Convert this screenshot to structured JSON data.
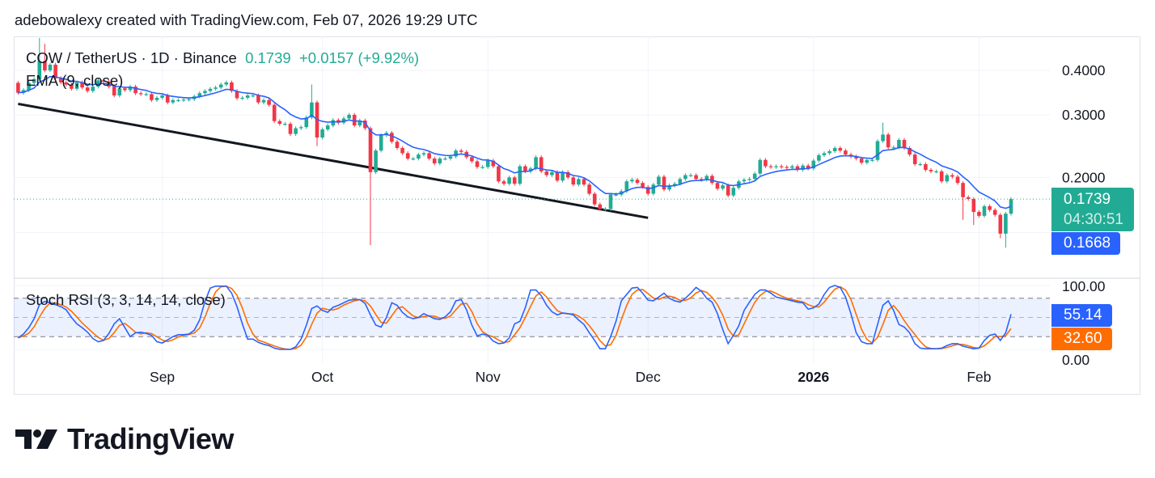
{
  "credit": "adebowalexy created with TradingView.com, Feb 07, 2026 19:29 UTC",
  "legend": {
    "symbol": "COW / TetherUS · 1D · Binance",
    "last": "0.1739",
    "change": "+0.0157 (+9.92%)",
    "ema_label": "EMA (9, close)",
    "stoch_label": "Stoch RSI (3, 3, 14, 14, close)"
  },
  "price_tags": {
    "last_price": "0.1739",
    "countdown": "04:30:51",
    "ema_value": "0.1668",
    "stoch_k": "55.14",
    "stoch_d": "32.60"
  },
  "logo_text": "TradingView",
  "colors": {
    "up": "#22ab94",
    "down": "#f23645",
    "ema": "#2962ff",
    "k": "#2962ff",
    "d": "#ff6d00",
    "trendline": "#131722"
  },
  "chart_data": [
    {
      "type": "candlestick",
      "interval": "1D",
      "last_date": "2026-02-07",
      "scale": "log",
      "price_axis_labels": [
        "0.4000",
        "0.3000",
        "0.2000"
      ],
      "gridline_prices": [
        0.4,
        0.3,
        0.2,
        0.14
      ],
      "time_axis_labels": [
        {
          "label": "Sep",
          "date": "2025-09-01",
          "bold": false
        },
        {
          "label": "Oct",
          "date": "2025-10-01",
          "bold": false
        },
        {
          "label": "Nov",
          "date": "2025-11-01",
          "bold": false
        },
        {
          "label": "Dec",
          "date": "2025-12-01",
          "bold": false
        },
        {
          "label": "2026",
          "date": "2026-01-01",
          "bold": true
        },
        {
          "label": "Feb",
          "date": "2026-02-01",
          "bold": false
        }
      ],
      "first_open": 0.369,
      "closes": [
        0.346,
        0.352,
        0.369,
        0.378,
        0.425,
        0.4,
        0.415,
        0.38,
        0.37,
        0.365,
        0.355,
        0.37,
        0.358,
        0.35,
        0.36,
        0.375,
        0.372,
        0.36,
        0.34,
        0.356,
        0.352,
        0.36,
        0.345,
        0.343,
        0.343,
        0.33,
        0.335,
        0.34,
        0.325,
        0.33,
        0.33,
        0.331,
        0.332,
        0.338,
        0.345,
        0.35,
        0.355,
        0.358,
        0.365,
        0.37,
        0.35,
        0.334,
        0.335,
        0.34,
        0.34,
        0.325,
        0.33,
        0.32,
        0.288,
        0.283,
        0.283,
        0.265,
        0.275,
        0.277,
        0.295,
        0.325,
        0.259,
        0.273,
        0.28,
        0.29,
        0.285,
        0.293,
        0.3,
        0.28,
        0.289,
        0.275,
        0.207,
        0.238,
        0.263,
        0.267,
        0.252,
        0.242,
        0.234,
        0.226,
        0.226,
        0.232,
        0.234,
        0.226,
        0.219,
        0.226,
        0.226,
        0.229,
        0.238,
        0.236,
        0.228,
        0.222,
        0.214,
        0.214,
        0.223,
        0.215,
        0.195,
        0.192,
        0.2,
        0.192,
        0.215,
        0.208,
        0.212,
        0.228,
        0.208,
        0.203,
        0.207,
        0.196,
        0.207,
        0.2,
        0.191,
        0.198,
        0.191,
        0.18,
        0.168,
        0.163,
        0.163,
        0.179,
        0.179,
        0.183,
        0.195,
        0.197,
        0.193,
        0.188,
        0.18,
        0.191,
        0.201,
        0.185,
        0.19,
        0.192,
        0.198,
        0.203,
        0.203,
        0.198,
        0.197,
        0.202,
        0.193,
        0.186,
        0.19,
        0.178,
        0.187,
        0.195,
        0.197,
        0.198,
        0.205,
        0.224,
        0.215,
        0.214,
        0.215,
        0.214,
        0.213,
        0.215,
        0.21,
        0.216,
        0.212,
        0.223,
        0.231,
        0.234,
        0.237,
        0.242,
        0.238,
        0.232,
        0.229,
        0.226,
        0.22,
        0.224,
        0.224,
        0.253,
        0.264,
        0.243,
        0.243,
        0.255,
        0.242,
        0.232,
        0.218,
        0.218,
        0.21,
        0.208,
        0.208,
        0.195,
        0.203,
        0.201,
        0.193,
        0.176,
        0.174,
        0.16,
        0.156,
        0.166,
        0.162,
        0.157,
        0.139,
        0.1582,
        0.1739
      ],
      "wick_extremes": [
        {
          "date": "2025-08-09",
          "high": 0.493
        },
        {
          "date": "2025-08-10",
          "high": 0.475
        },
        {
          "date": "2025-09-29",
          "high": 0.365
        },
        {
          "date": "2025-09-30",
          "low": 0.245
        },
        {
          "date": "2025-10-10",
          "low": 0.129
        },
        {
          "date": "2026-01-14",
          "high": 0.285
        },
        {
          "date": "2026-01-29",
          "low": 0.152
        },
        {
          "date": "2026-01-31",
          "low": 0.147
        },
        {
          "date": "2026-02-05",
          "low": 0.135
        },
        {
          "date": "2026-02-06",
          "low": 0.127
        }
      ],
      "ema_period": 9,
      "trendline": {
        "start": {
          "date": "2025-08-05",
          "price": 0.322
        },
        "end": {
          "date": "2025-12-01",
          "price": 0.154
        }
      }
    },
    {
      "type": "line",
      "name": "Stoch RSI (3, 3, 14, 14, close)",
      "ylim": [
        0,
        100
      ],
      "axis_labels": [
        "100.00",
        "0.00"
      ],
      "bands": [
        80,
        50,
        20
      ],
      "d_smoothing": 3,
      "k": [
        18,
        24,
        34,
        48,
        70,
        75,
        73,
        70,
        67,
        62,
        50,
        40,
        34,
        27,
        17,
        12,
        14,
        25,
        40,
        48,
        34,
        20,
        26,
        27,
        25,
        22,
        12,
        10,
        15,
        20,
        23,
        23,
        24,
        30,
        46,
        75,
        96,
        99,
        99,
        99,
        88,
        67,
        40,
        16,
        16,
        11,
        8,
        6,
        2,
        0,
        0,
        0,
        4,
        16,
        38,
        64,
        68,
        61,
        58,
        66,
        69,
        73,
        77,
        78,
        78,
        72,
        54,
        38,
        35,
        50,
        73,
        69,
        58,
        51,
        48,
        50,
        56,
        52,
        48,
        47,
        51,
        59,
        76,
        78,
        62,
        38,
        21,
        24,
        22,
        13,
        9,
        10,
        18,
        40,
        44,
        65,
        93,
        93,
        84,
        69,
        59,
        54,
        57,
        56,
        54,
        46,
        39,
        26,
        14,
        1,
        1,
        20,
        44,
        76,
        86,
        96,
        97,
        88,
        77,
        76,
        82,
        88,
        80,
        76,
        74,
        80,
        88,
        97,
        91,
        80,
        74,
        56,
        31,
        9,
        22,
        37,
        61,
        74,
        86,
        93,
        93,
        88,
        82,
        80,
        78,
        76,
        74,
        73,
        63,
        65,
        71,
        86,
        97,
        100,
        97,
        82,
        56,
        26,
        12,
        9,
        9,
        39,
        69,
        76,
        61,
        39,
        35,
        26,
        9,
        2,
        1,
        1,
        1,
        2,
        6,
        9,
        9,
        5,
        3,
        1,
        2,
        14,
        22,
        24,
        14,
        26,
        55.14
      ]
    }
  ]
}
